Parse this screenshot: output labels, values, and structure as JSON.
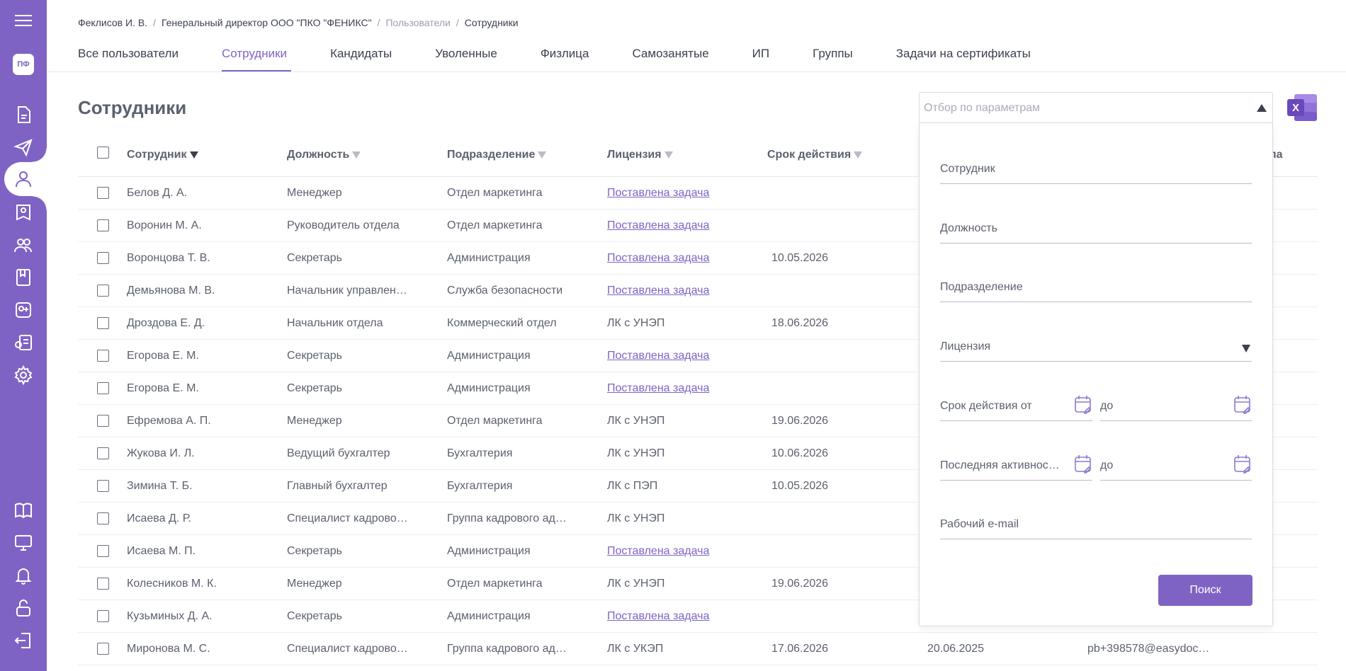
{
  "sidebar": {
    "logo": "ПФ",
    "top_icons": [
      "document-icon",
      "send-icon",
      "user-icon",
      "badge-user-icon",
      "users-group-icon",
      "bookmark-icon",
      "add-group-icon",
      "certificate-icon",
      "settings-icon"
    ],
    "bottom_icons": [
      "book-icon",
      "monitor-icon",
      "bell-icon",
      "unlock-icon",
      "logout-icon"
    ]
  },
  "breadcrumb": {
    "user": "Феклисов И. В.",
    "org": "Генеральный директор ООО \"ПКО \"ФЕНИКС\"",
    "section": "Пользователи",
    "current": "Сотрудники",
    "separator": "/"
  },
  "tabs": [
    {
      "label": "Все пользователи",
      "active": false
    },
    {
      "label": "Сотрудники",
      "active": true
    },
    {
      "label": "Кандидаты",
      "active": false
    },
    {
      "label": "Уволенные",
      "active": false
    },
    {
      "label": "Физлица",
      "active": false
    },
    {
      "label": "Самозанятые",
      "active": false
    },
    {
      "label": "ИП",
      "active": false
    },
    {
      "label": "Группы",
      "active": false
    },
    {
      "label": "Задачи на сертификаты",
      "active": false
    }
  ],
  "page": {
    "title": "Сотрудники"
  },
  "table": {
    "headers": {
      "employee": "Сотрудник",
      "position": "Должность",
      "department": "Подразделение",
      "license": "Лицензия",
      "validity": "Срок действия",
      "last_col_partial": "па"
    },
    "rows": [
      {
        "name": "Белов Д. А.",
        "position": "Менеджер",
        "dept": "Отдел маркетинга",
        "license": "Поставлена задача",
        "license_link": true,
        "validity": "",
        "activity": "",
        "email": ""
      },
      {
        "name": "Воронин М. А.",
        "position": "Руководитель отдела",
        "dept": "Отдел маркетинга",
        "license": "Поставлена задача",
        "license_link": true,
        "validity": "",
        "activity": "",
        "email": ""
      },
      {
        "name": "Воронцова Т. В.",
        "position": "Секретарь",
        "dept": "Администрация",
        "license": "Поставлена задача",
        "license_link": true,
        "validity": "10.05.2026",
        "activity": "",
        "email": ""
      },
      {
        "name": "Демьянова М. В.",
        "position": "Начальник управлен…",
        "dept": "Служба безопасности",
        "license": "Поставлена задача",
        "license_link": true,
        "validity": "",
        "activity": "",
        "email": ""
      },
      {
        "name": "Дроздова Е. Д.",
        "position": "Начальник отдела",
        "dept": "Коммерческий отдел",
        "license": "ЛК с УНЭП",
        "license_link": false,
        "validity": "18.06.2026",
        "activity": "",
        "email": ""
      },
      {
        "name": "Егорова Е. М.",
        "position": "Секретарь",
        "dept": "Администрация",
        "license": "Поставлена задача",
        "license_link": true,
        "validity": "",
        "activity": "",
        "email": ""
      },
      {
        "name": "Егорова Е. М.",
        "position": "Секретарь",
        "dept": "Администрация",
        "license": "Поставлена задача",
        "license_link": true,
        "validity": "",
        "activity": "",
        "email": ""
      },
      {
        "name": "Ефремова А. П.",
        "position": "Менеджер",
        "dept": "Отдел маркетинга",
        "license": "ЛК с УНЭП",
        "license_link": false,
        "validity": "19.06.2026",
        "activity": "",
        "email": ""
      },
      {
        "name": "Жукова И. Л.",
        "position": "Ведущий бухгалтер",
        "dept": "Бухгалтерия",
        "license": "ЛК с УНЭП",
        "license_link": false,
        "validity": "10.06.2026",
        "activity": "",
        "email": ""
      },
      {
        "name": "Зимина Т. Б.",
        "position": "Главный бухгалтер",
        "dept": "Бухгалтерия",
        "license": "ЛК с ПЭП",
        "license_link": false,
        "validity": "10.05.2026",
        "activity": "",
        "email": ""
      },
      {
        "name": "Исаева Д. Р.",
        "position": "Специалист кадрово…",
        "dept": "Группа кадрового ад…",
        "license": "ЛК с УНЭП",
        "license_link": false,
        "validity": "",
        "activity": "",
        "email": ""
      },
      {
        "name": "Исаева М. П.",
        "position": "Секретарь",
        "dept": "Администрация",
        "license": "Поставлена задача",
        "license_link": true,
        "validity": "",
        "activity": "",
        "email": ""
      },
      {
        "name": "Колесников М. К.",
        "position": "Менеджер",
        "dept": "Отдел маркетинга",
        "license": "ЛК с УНЭП",
        "license_link": false,
        "validity": "19.06.2026",
        "activity": "",
        "email": ""
      },
      {
        "name": "Кузьминых Д. А.",
        "position": "Секретарь",
        "dept": "Администрация",
        "license": "Поставлена задача",
        "license_link": true,
        "validity": "",
        "activity": "",
        "email": ""
      },
      {
        "name": "Миронова М. С.",
        "position": "Специалист кадрово…",
        "dept": "Группа кадрового ад…",
        "license": "ЛК с УКЭП",
        "license_link": false,
        "validity": "17.06.2026",
        "activity": "20.06.2025",
        "email": "pb+398578@easydoc…"
      }
    ]
  },
  "filter": {
    "placeholder": "Отбор по параметрам",
    "fields": {
      "employee": "Сотрудник",
      "position": "Должность",
      "department": "Подразделение",
      "license": "Лицензия",
      "validity_from": "Срок действия от",
      "validity_to": "до",
      "activity_from": "Последняя активнос…",
      "activity_to": "до",
      "email": "Рабочий e-mail"
    },
    "search_label": "Поиск"
  },
  "colors": {
    "accent": "#7f63c4",
    "text": "#3c4150",
    "muted": "#9aa0ac"
  }
}
